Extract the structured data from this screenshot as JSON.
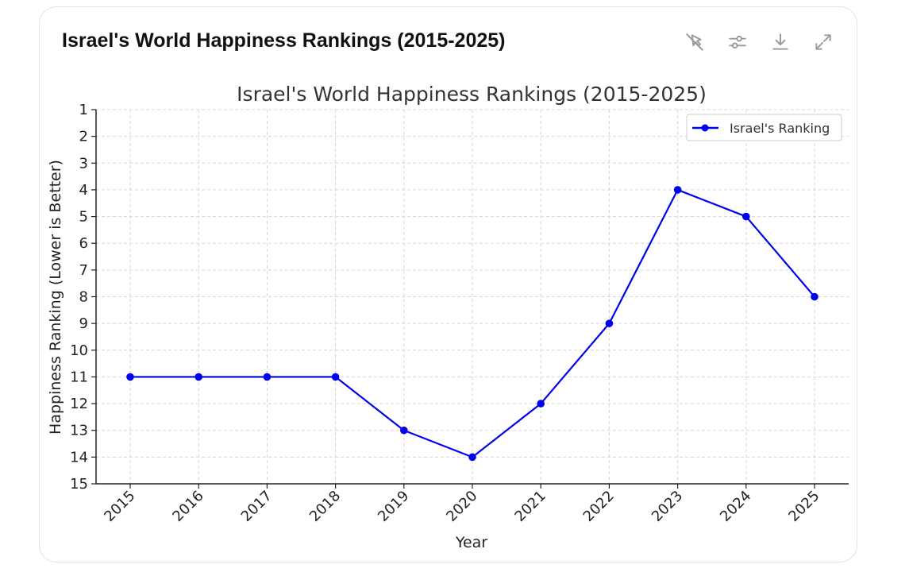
{
  "card": {
    "title": "Israel's World Happiness Rankings (2015-2025)",
    "toolbar": [
      {
        "name": "interactive-chart-icon"
      },
      {
        "name": "settings-sliders-icon"
      },
      {
        "name": "download-icon"
      },
      {
        "name": "expand-icon"
      }
    ]
  },
  "colors": {
    "series": "#0000ee",
    "grid": "#d7d7d7",
    "axis": "#222222",
    "text": "#333333"
  },
  "chart_data": {
    "type": "line",
    "title": "Israel's World Happiness Rankings (2015-2025)",
    "xlabel": "Year",
    "ylabel": "Happiness Ranking (Lower is Better)",
    "x": [
      "2015",
      "2016",
      "2017",
      "2018",
      "2019",
      "2020",
      "2021",
      "2022",
      "2023",
      "2024",
      "2025"
    ],
    "series": [
      {
        "name": "Israel's Ranking",
        "values": [
          11,
          11,
          11,
          11,
          13,
          14,
          12,
          9,
          4,
          5,
          8
        ]
      }
    ],
    "ylim": [
      1,
      15
    ],
    "y_inverted": true,
    "yticks": [
      1,
      2,
      3,
      4,
      5,
      6,
      7,
      8,
      9,
      10,
      11,
      12,
      13,
      14,
      15
    ],
    "grid": true,
    "grid_style": "dashed",
    "legend_position": "top-right",
    "marker": "circle"
  }
}
